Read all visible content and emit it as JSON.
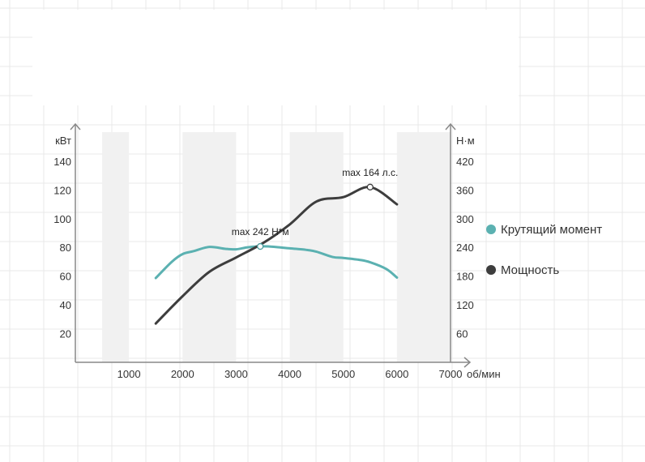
{
  "chart_data": {
    "type": "line",
    "x_unit": "об/мин",
    "y_left_unit": "кВт",
    "y_right_unit": "Н·м",
    "x_ticks": [
      1000,
      2000,
      3000,
      4000,
      5000,
      6000,
      7000
    ],
    "y_left_ticks": [
      20,
      40,
      60,
      80,
      100,
      120,
      140
    ],
    "y_right_ticks": [
      60,
      120,
      180,
      240,
      300,
      360,
      420
    ],
    "xlim": [
      0,
      7000
    ],
    "ylim_left": [
      0,
      160
    ],
    "ylim_right": [
      0,
      480
    ],
    "shaded_bands": [
      [
        500,
        1000
      ],
      [
        2000,
        3000
      ],
      [
        4000,
        5000
      ],
      [
        6000,
        7000
      ]
    ],
    "legend_position": "right",
    "series": [
      {
        "name": "Крутящий момент",
        "axis": "right",
        "color": "#5bb1b1",
        "x": [
          1500,
          1800,
          2000,
          2200,
          2500,
          2800,
          3000,
          3200,
          3400,
          3600,
          4000,
          4300,
          4500,
          4800,
          5000,
          5300,
          5500,
          5800,
          6000
        ],
        "y": [
          176,
          210,
          226,
          232,
          241,
          237,
          236,
          240,
          242,
          242,
          238,
          235,
          231,
          220,
          218,
          214,
          209,
          195,
          177
        ]
      },
      {
        "name": "Мощность",
        "axis": "left",
        "color": "#3d3d3d",
        "x": [
          1500,
          2000,
          2500,
          3000,
          3500,
          4000,
          4500,
          5000,
          5500,
          6000
        ],
        "y": [
          27,
          46,
          63,
          73,
          83,
          96,
          112,
          115,
          122,
          110
        ]
      }
    ],
    "annotations": [
      {
        "text": "max 242 Н*м",
        "series": "Крутящий момент",
        "x": 3450,
        "y": 242
      },
      {
        "text": "max 164 л.с.",
        "series": "Мощность",
        "x": 5500,
        "y": 122
      }
    ]
  }
}
